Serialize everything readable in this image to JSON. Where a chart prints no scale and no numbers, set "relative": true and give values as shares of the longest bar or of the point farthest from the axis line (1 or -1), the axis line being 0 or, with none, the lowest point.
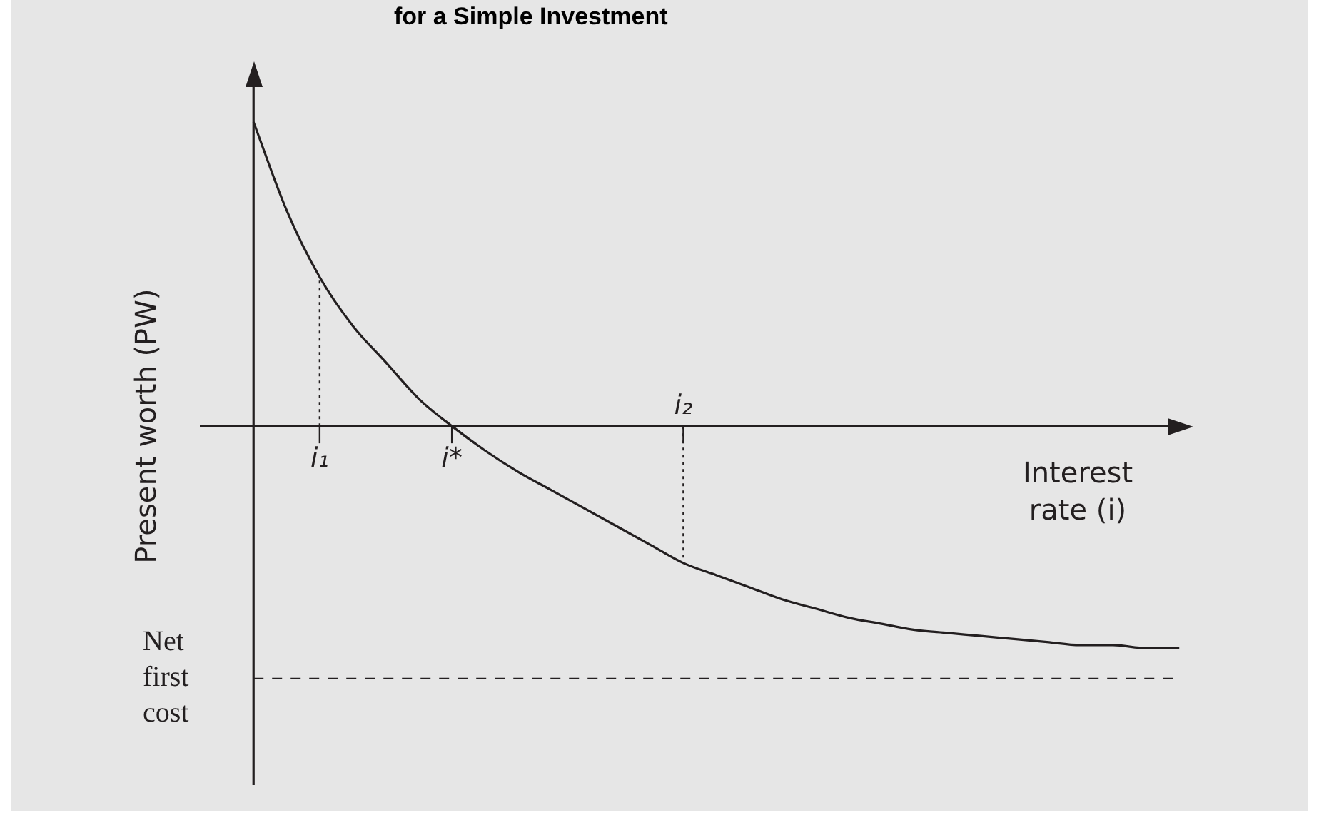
{
  "chart_data": {
    "type": "line",
    "title": "for a Simple Investment",
    "ylabel": "Present worth (PW)",
    "xlabel": "Interest rate (i)",
    "relative": true,
    "marker": "none",
    "line_style": "solid",
    "legend": false,
    "categories": [
      null,
      null,
      "i₁",
      null,
      null,
      null,
      "i*",
      null,
      null,
      null,
      null,
      null,
      null,
      "i₂",
      null,
      null,
      null,
      null,
      null,
      null,
      null,
      null,
      null,
      null,
      null,
      null,
      null,
      null,
      null
    ],
    "series": [
      {
        "color": "#231f20",
        "values": [
          1.0,
          0.71,
          0.49,
          0.33,
          0.21,
          0.09,
          0,
          -0.08,
          -0.15,
          -0.21,
          -0.27,
          -0.33,
          -0.39,
          -0.45,
          -0.49,
          -0.53,
          -0.57,
          -0.6,
          -0.63,
          -0.65,
          -0.67,
          -0.68,
          -0.69,
          -0.7,
          -0.71,
          -0.72,
          -0.72,
          -0.73,
          -0.73
        ]
      }
    ],
    "ref_lines": [
      {
        "axis": "y",
        "value": -0.83,
        "label": "Net first cost",
        "line_style": "dashed",
        "color": "#231f20"
      },
      {
        "axis": "x",
        "value": "i₁",
        "line_style": "dotted",
        "color": "#231f20"
      },
      {
        "axis": "x",
        "value": "i₂",
        "line_style": "dotted",
        "color": "#231f20"
      }
    ]
  }
}
